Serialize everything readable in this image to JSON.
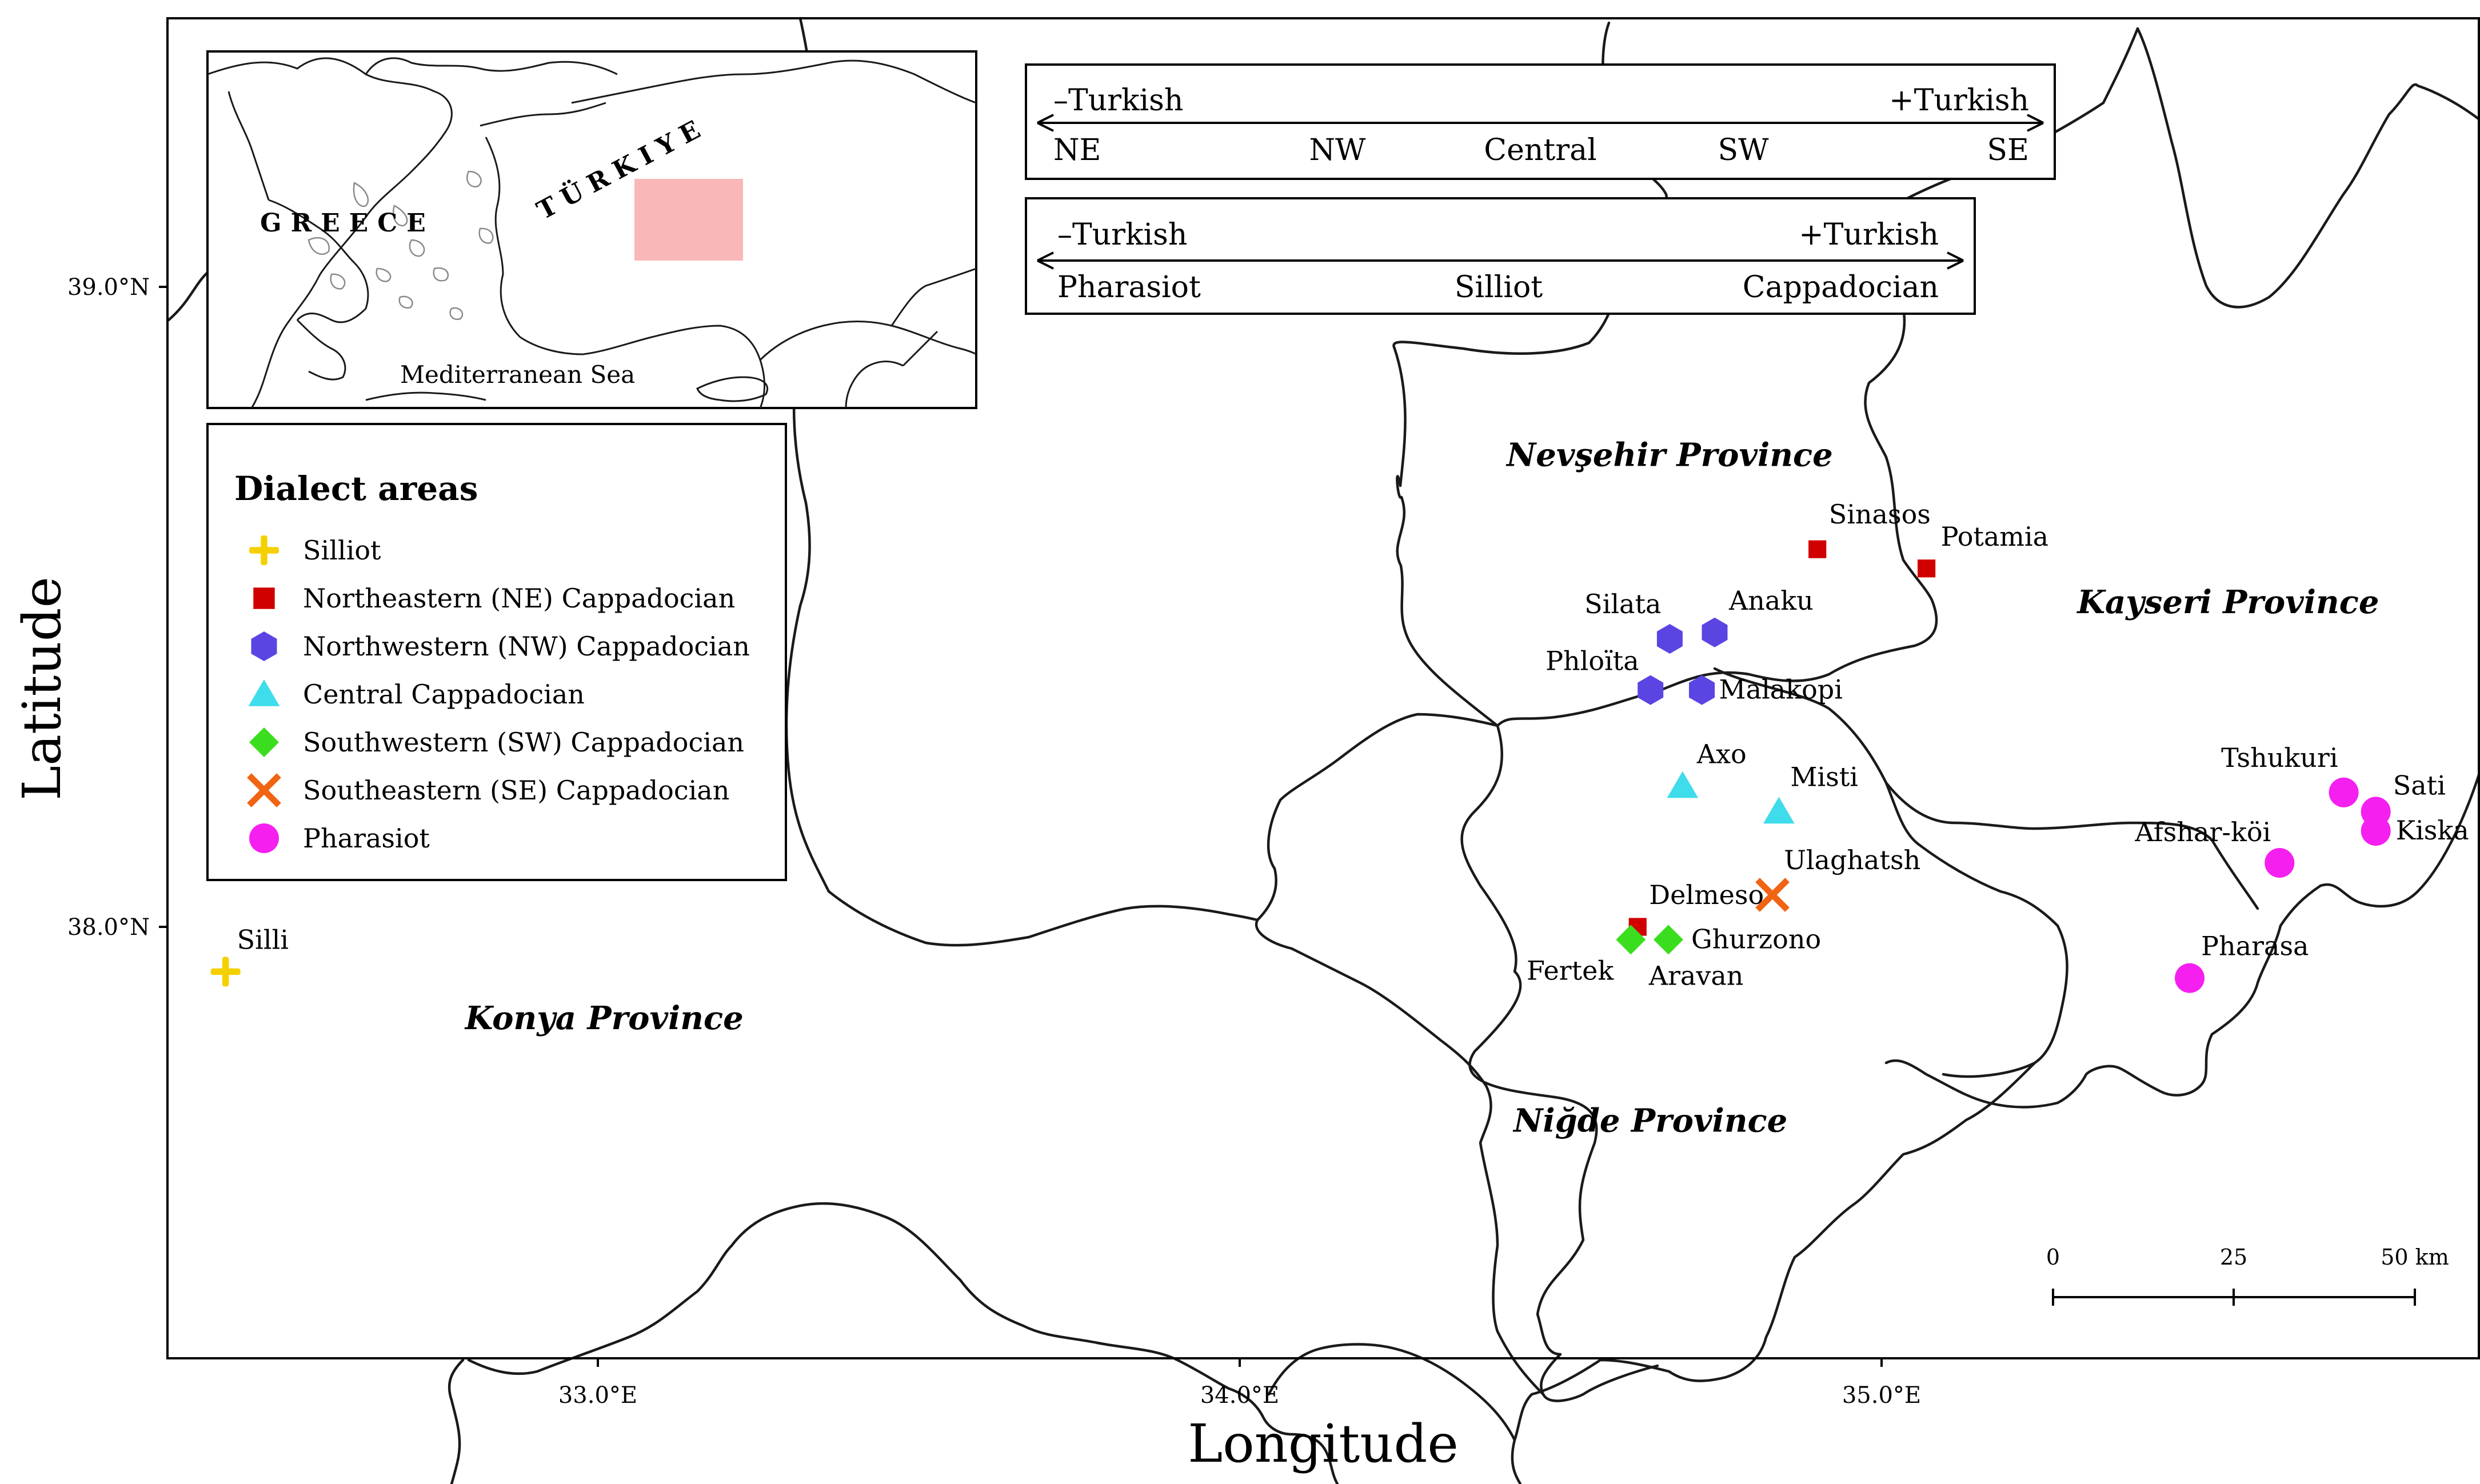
{
  "axes": {
    "xlabel": "Longitude",
    "ylabel": "Latitude",
    "x_ticks": [
      {
        "value": 33.0,
        "label": "33.0°E"
      },
      {
        "value": 34.0,
        "label": "34.0°E"
      },
      {
        "value": 35.0,
        "label": "35.0°E"
      }
    ],
    "y_ticks": [
      {
        "value": 39.0,
        "label": "39.0°N"
      },
      {
        "value": 38.0,
        "label": "38.0°N"
      }
    ]
  },
  "provinces": [
    {
      "name": "Nevşehir Province",
      "lon": 34.67,
      "lat": 38.72
    },
    {
      "name": "Kayseri Province",
      "lon": 35.54,
      "lat": 38.49
    },
    {
      "name": "Konya Province",
      "lon": 33.01,
      "lat": 37.84
    },
    {
      "name": "Niğde Province",
      "lon": 34.64,
      "lat": 37.68
    }
  ],
  "inset": {
    "labels": {
      "greece": "GREECE",
      "turkiye": "TÜRKIYE",
      "sea": "Mediterranean Sea"
    },
    "highlight_color": "#f9b7b7"
  },
  "continua": [
    {
      "left": "–Turkish",
      "right": "+Turkish",
      "stops": [
        "NE",
        "NW",
        "Central",
        "SW",
        "SE"
      ]
    },
    {
      "left": "–Turkish",
      "right": "+Turkish",
      "stops": [
        "Pharasiot",
        "Silliot",
        "Cappadocian"
      ]
    }
  ],
  "legend": {
    "title": "Dialect areas",
    "items": [
      {
        "key": "silliot",
        "label": "Silliot",
        "shape": "cross",
        "color": "#f5d000"
      },
      {
        "key": "ne",
        "label": "Northeastern (NE) Cappadocian",
        "shape": "square",
        "color": "#d10000"
      },
      {
        "key": "nw",
        "label": "Northwestern (NW) Cappadocian",
        "shape": "hexagon",
        "color": "#5a45e3"
      },
      {
        "key": "central",
        "label": "Central Cappadocian",
        "shape": "triangle",
        "color": "#3fdceb"
      },
      {
        "key": "sw",
        "label": "Southwestern (SW) Cappadocian",
        "shape": "diamond",
        "color": "#3bde1e"
      },
      {
        "key": "se",
        "label": "Southeastern (SE) Cappadocian",
        "shape": "x",
        "color": "#f06414"
      },
      {
        "key": "pharasiot",
        "label": "Pharasiot",
        "shape": "circle",
        "color": "#f51ff0"
      }
    ]
  },
  "places": [
    {
      "name": "Silli",
      "group": "silliot",
      "lon": 32.42,
      "lat": 37.93
    },
    {
      "name": "Sinasos",
      "group": "ne",
      "lon": 34.9,
      "lat": 38.59
    },
    {
      "name": "Potamia",
      "group": "ne",
      "lon": 35.07,
      "lat": 38.56
    },
    {
      "name": "Delmeso",
      "group": "ne",
      "lon": 34.62,
      "lat": 38.0
    },
    {
      "name": "Silata",
      "group": "nw",
      "lon": 34.67,
      "lat": 38.45
    },
    {
      "name": "Anaku",
      "group": "nw",
      "lon": 34.74,
      "lat": 38.46
    },
    {
      "name": "Phloïta",
      "group": "nw",
      "lon": 34.64,
      "lat": 38.37
    },
    {
      "name": "Malakopi",
      "group": "nw",
      "lon": 34.72,
      "lat": 38.37
    },
    {
      "name": "Axo",
      "group": "central",
      "lon": 34.69,
      "lat": 38.22
    },
    {
      "name": "Misti",
      "group": "central",
      "lon": 34.84,
      "lat": 38.18
    },
    {
      "name": "Fertek",
      "group": "sw",
      "lon": 34.62,
      "lat": 37.98
    },
    {
      "name": "Ghurzono",
      "group": "sw",
      "lon": 34.65,
      "lat": 37.98
    },
    {
      "name": "Aravan",
      "group": "sw",
      "lon": 34.64,
      "lat": 37.98
    },
    {
      "name": "Ulaghatsh",
      "group": "se",
      "lon": 34.83,
      "lat": 38.05
    },
    {
      "name": "Tshukuri",
      "group": "pharasiot",
      "lon": 35.72,
      "lat": 38.21
    },
    {
      "name": "Sati",
      "group": "pharasiot",
      "lon": 35.77,
      "lat": 38.18
    },
    {
      "name": "Afshar-köi",
      "group": "pharasiot",
      "lon": 35.62,
      "lat": 38.1
    },
    {
      "name": "Kiska",
      "group": "pharasiot",
      "lon": 35.77,
      "lat": 38.15
    },
    {
      "name": "Pharasa",
      "group": "pharasiot",
      "lon": 35.48,
      "lat": 37.92
    }
  ],
  "scale_bar": {
    "labels": [
      "0",
      "25",
      "50 km"
    ]
  }
}
